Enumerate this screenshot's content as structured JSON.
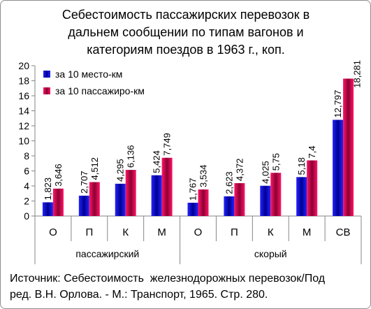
{
  "chart_data": {
    "type": "bar",
    "title_lines": [
      "Себестоимость пассажирских перевозок в",
      "дальнем сообщении по типам вагонов и",
      "категориям поездов в 1963 г., коп."
    ],
    "categories": [
      "О",
      "П",
      "К",
      "М",
      "О",
      "П",
      "К",
      "М",
      "СВ"
    ],
    "groups": [
      {
        "label": "пассажирский",
        "span": 4
      },
      {
        "label": "скорый",
        "span": 5
      }
    ],
    "series": [
      {
        "name": "за 10 место-км",
        "color": "#2323ff",
        "shade": "#000090",
        "values": [
          1.823,
          2.707,
          4.295,
          5.424,
          1.767,
          2.623,
          4.025,
          5.18,
          12.797
        ]
      },
      {
        "name": "за 10 пассажиро-км",
        "color": "#ff1466",
        "shade": "#8a0033",
        "values": [
          3.646,
          4.512,
          6.136,
          7.749,
          3.534,
          4.372,
          5.75,
          7.4,
          18.281
        ]
      }
    ],
    "ylim": [
      0,
      20
    ],
    "ytick_step": 2,
    "grid": false,
    "legend": "top-left"
  },
  "source_lines": [
    "Источник: Себестоимость  железнодорожных перевозок/Под",
    "ред. В.Н. Орлова. - М.: Транспорт, 1965. Стр. 280."
  ]
}
